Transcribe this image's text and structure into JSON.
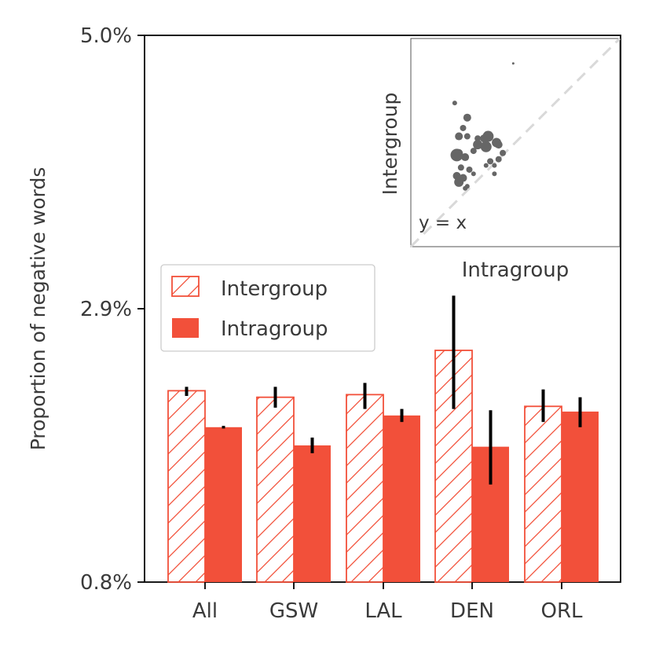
{
  "chart_data": {
    "type": "bar",
    "ylabel": "Proportion of negative words",
    "xlabel": "",
    "ylim": [
      0.8,
      5.0
    ],
    "y_ticks": [
      0.8,
      2.9,
      5.0
    ],
    "y_tick_labels": [
      "0.8%",
      "2.9%",
      "5.0%"
    ],
    "categories": [
      "All",
      "GSW",
      "LAL",
      "DEN",
      "ORL"
    ],
    "series": [
      {
        "name": "Intergroup",
        "style": "hatched",
        "values": [
          2.27,
          2.22,
          2.24,
          2.58,
          2.15
        ],
        "err_low": [
          2.23,
          2.14,
          2.13,
          2.13,
          2.03
        ],
        "err_high": [
          2.3,
          2.3,
          2.33,
          3.0,
          2.28
        ]
      },
      {
        "name": "Intragroup",
        "style": "solid",
        "values": [
          1.99,
          1.85,
          2.08,
          1.84,
          2.11
        ],
        "err_low": [
          1.98,
          1.79,
          2.03,
          1.55,
          1.99
        ],
        "err_high": [
          2.0,
          1.91,
          2.13,
          2.12,
          2.22
        ]
      }
    ],
    "legend": {
      "position": "center-left",
      "entries": [
        "Intergroup",
        "Intragroup"
      ]
    },
    "inset": {
      "type": "scatter",
      "xlabel": "Intragroup",
      "ylabel": "Intergroup",
      "annotation": "y = x",
      "xlim": [
        0,
        1
      ],
      "ylim": [
        0,
        1
      ],
      "points": [
        {
          "x": 0.49,
          "y": 0.88,
          "s": 1.5
        },
        {
          "x": 0.21,
          "y": 0.69,
          "s": 3
        },
        {
          "x": 0.27,
          "y": 0.62,
          "s": 5
        },
        {
          "x": 0.25,
          "y": 0.57,
          "s": 4
        },
        {
          "x": 0.23,
          "y": 0.53,
          "s": 5
        },
        {
          "x": 0.27,
          "y": 0.53,
          "s": 4
        },
        {
          "x": 0.32,
          "y": 0.52,
          "s": 4
        },
        {
          "x": 0.35,
          "y": 0.52,
          "s": 5
        },
        {
          "x": 0.37,
          "y": 0.53,
          "s": 7
        },
        {
          "x": 0.41,
          "y": 0.5,
          "s": 6
        },
        {
          "x": 0.32,
          "y": 0.49,
          "s": 6
        },
        {
          "x": 0.36,
          "y": 0.48,
          "s": 7
        },
        {
          "x": 0.42,
          "y": 0.49,
          "s": 5
        },
        {
          "x": 0.44,
          "y": 0.45,
          "s": 4
        },
        {
          "x": 0.3,
          "y": 0.46,
          "s": 4
        },
        {
          "x": 0.23,
          "y": 0.45,
          "s": 5
        },
        {
          "x": 0.22,
          "y": 0.44,
          "s": 8
        },
        {
          "x": 0.26,
          "y": 0.43,
          "s": 5
        },
        {
          "x": 0.38,
          "y": 0.41,
          "s": 4
        },
        {
          "x": 0.42,
          "y": 0.42,
          "s": 4
        },
        {
          "x": 0.36,
          "y": 0.39,
          "s": 3
        },
        {
          "x": 0.4,
          "y": 0.39,
          "s": 3
        },
        {
          "x": 0.24,
          "y": 0.38,
          "s": 4
        },
        {
          "x": 0.28,
          "y": 0.37,
          "s": 4
        },
        {
          "x": 0.3,
          "y": 0.35,
          "s": 3
        },
        {
          "x": 0.22,
          "y": 0.34,
          "s": 5
        },
        {
          "x": 0.25,
          "y": 0.33,
          "s": 5
        },
        {
          "x": 0.4,
          "y": 0.35,
          "s": 3
        },
        {
          "x": 0.23,
          "y": 0.31,
          "s": 6
        },
        {
          "x": 0.27,
          "y": 0.29,
          "s": 3
        },
        {
          "x": 0.26,
          "y": 0.28,
          "s": 3
        }
      ]
    }
  },
  "colors": {
    "bar": "#f2503a",
    "axis": "#000000",
    "text": "#3a3a3a",
    "errorbar": "#000000",
    "scatter": "#666666",
    "diagonal": "#d9d9d9",
    "legend_border": "#cccccc"
  }
}
